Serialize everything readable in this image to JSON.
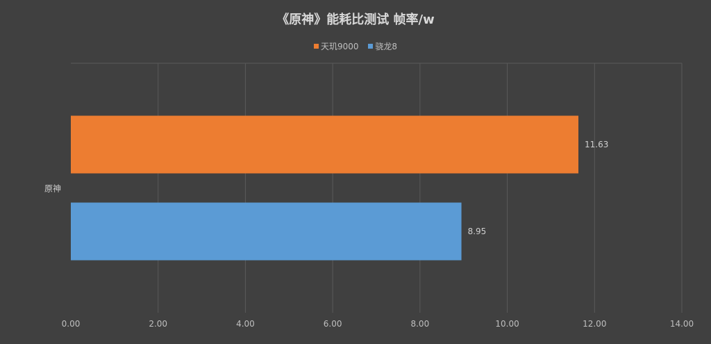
{
  "chart_data": {
    "type": "bar",
    "orientation": "horizontal",
    "title": "《原神》能耗比测试  帧率/w",
    "categories": [
      "原神"
    ],
    "series": [
      {
        "name": "天玑9000",
        "values": [
          11.63
        ],
        "labels": [
          "11.63"
        ],
        "color": "#ED7D31"
      },
      {
        "name": "骁龙8",
        "values": [
          8.95
        ],
        "labels": [
          "8.95"
        ],
        "color": "#5B9BD5"
      }
    ],
    "xlim": [
      0,
      14
    ],
    "xticks": [
      "0.00",
      "2.00",
      "4.00",
      "6.00",
      "8.00",
      "10.00",
      "12.00",
      "14.00"
    ],
    "xtick_values": [
      0,
      2,
      4,
      6,
      8,
      10,
      12,
      14
    ],
    "grid": true,
    "legend_position": "top",
    "background": "#404040",
    "text_color": "#d9d9d9"
  }
}
